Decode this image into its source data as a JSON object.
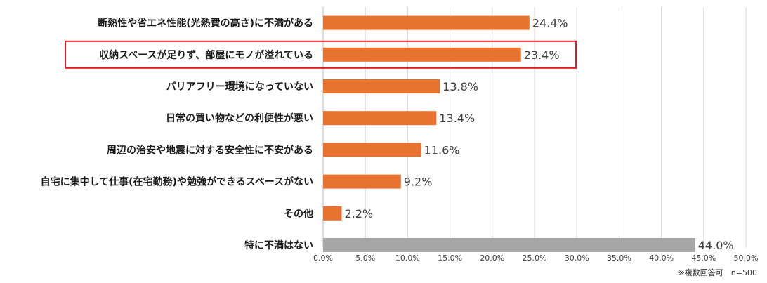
{
  "chart_data": {
    "type": "bar",
    "orientation": "horizontal",
    "categories": [
      "断熱性や省エネ性能(光熱費の高さ)に不満がある",
      "収納スペースが足りず、部屋にモノが溢れている",
      "バリアフリー環境になっていない",
      "日常の買い物などの利便性が悪い",
      "周辺の治安や地震に対する安全性に不安がある",
      "自宅に集中して仕事(在宅勤務)や勉強ができるスペースがない",
      "その他",
      "特に不満はない"
    ],
    "values": [
      24.4,
      23.4,
      13.8,
      13.4,
      11.6,
      9.2,
      2.2,
      44.0
    ],
    "value_labels": [
      "24.4%",
      "23.4%",
      "13.8%",
      "13.4%",
      "11.6%",
      "9.2%",
      "2.2%",
      "44.0%"
    ],
    "bar_colors": [
      "#e87330",
      "#e87330",
      "#e87330",
      "#e87330",
      "#e87330",
      "#e87330",
      "#e87330",
      "#a6a6a6"
    ],
    "highlighted_category_index": 1,
    "highlight_color": "#e0191f",
    "xlim": [
      0,
      50
    ],
    "ticks": [
      0,
      5,
      10,
      15,
      20,
      25,
      30,
      35,
      40,
      45,
      50
    ],
    "tick_labels": [
      "0.0%",
      "5.0%",
      "10.0%",
      "15.0%",
      "20.0%",
      "25.0%",
      "30.0%",
      "35.0%",
      "40.0%",
      "45.0%",
      "50.0%"
    ],
    "grid": true,
    "note": "※複数回答可　n=500"
  }
}
